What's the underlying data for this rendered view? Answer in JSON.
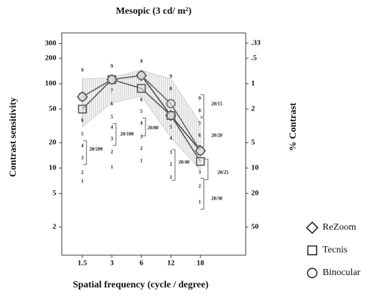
{
  "chart_data": {
    "type": "line",
    "title": "Mesopic (3 cd/ m²)",
    "x_label": "Spatial frequency (cycle / degree)",
    "y_label": "Contrast sensitivity",
    "y2_label": "% Contrast",
    "categories": [
      "1.5",
      "3",
      "6",
      "12",
      "18"
    ],
    "log_scale": true,
    "ylim": [
      1,
      400
    ],
    "yticks": [
      2,
      5,
      10,
      20,
      50,
      100,
      200,
      300
    ],
    "y2lim": [
      100,
      0.25
    ],
    "y2ticks": [
      {
        "value": 0.33,
        "label": ".33"
      },
      {
        "value": 0.5,
        "label": ".5"
      },
      1,
      2,
      5,
      10,
      20,
      50
    ],
    "band": {
      "upper": [
        114,
        118,
        145,
        114,
        34
      ],
      "lower": [
        31,
        59,
        71,
        23,
        9.5
      ]
    },
    "series": [
      {
        "name": "ReZoom",
        "marker": "diamond",
        "color": "#444",
        "values": [
          70,
          112,
          125,
          42,
          16
        ]
      },
      {
        "name": "Tecnis",
        "marker": "square",
        "color": "#555",
        "values": [
          50,
          112,
          88,
          42,
          12
        ]
      },
      {
        "name": "Binocular",
        "marker": "circle",
        "color": "#666",
        "values": [
          70,
          112,
          125,
          58,
          16
        ]
      }
    ],
    "annotations": [
      [
        "9",
        "6",
        "5",
        "4",
        "3",
        "2",
        "1"
      ],
      [
        "9",
        "7",
        "6",
        "5",
        "4",
        "3",
        "2",
        "1"
      ],
      [
        "9",
        "6",
        "5",
        "4",
        "3",
        "2",
        "1"
      ],
      [
        "9",
        "8",
        "5",
        "4",
        "3",
        "2",
        "1"
      ],
      [
        "9",
        "8",
        "7",
        "6",
        "5",
        "3",
        "2",
        "1"
      ]
    ],
    "acuity": [
      "20/200",
      "20/100",
      "20/80",
      "20/40",
      "20/15",
      "20/20",
      "20/25",
      "20/30"
    ]
  }
}
